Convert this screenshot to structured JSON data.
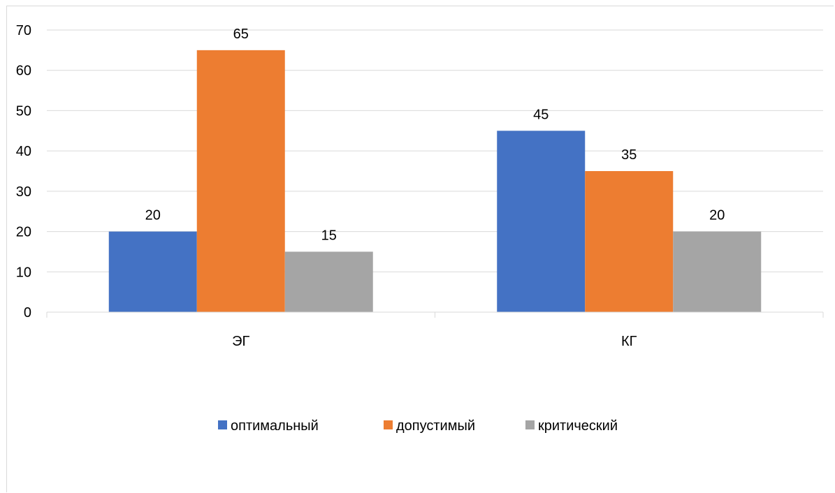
{
  "chart_data": {
    "type": "bar",
    "categories": [
      "ЭГ",
      "КГ"
    ],
    "series": [
      {
        "name": "оптимальный",
        "values": [
          20,
          45
        ],
        "color": "#4472c4"
      },
      {
        "name": "допустимый",
        "values": [
          65,
          35
        ],
        "color": "#ed7d31"
      },
      {
        "name": "критический",
        "values": [
          15,
          20
        ],
        "color": "#a5a5a5"
      }
    ],
    "title": "",
    "xlabel": "",
    "ylabel": "",
    "ylim": [
      0,
      70
    ],
    "yticks": [
      "0",
      "10",
      "20",
      "30",
      "40",
      "50",
      "60",
      "70"
    ],
    "grid": true,
    "legend": "bottom",
    "data_labels": true
  }
}
